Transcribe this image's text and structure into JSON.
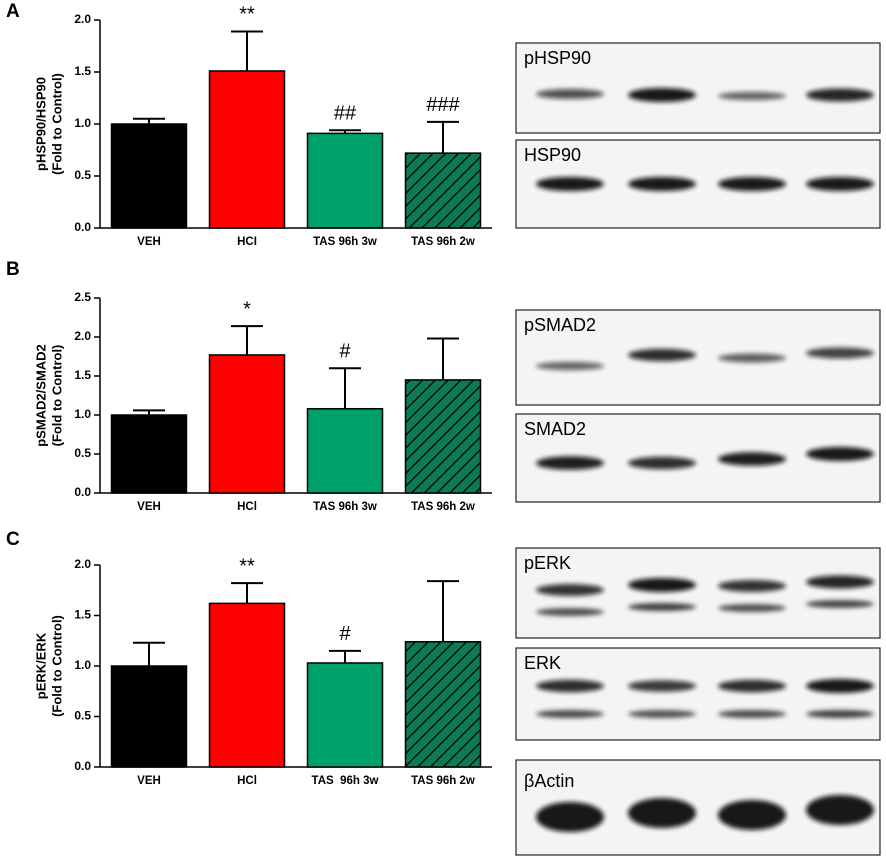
{
  "chart_data": [
    {
      "type": "bar",
      "panel": "A",
      "y_label": [
        "pHSP90/HSP90",
        "(Fold to Control)"
      ],
      "categories": [
        "VEH",
        "HCI",
        "TAS 96h 3w",
        "TAS 96h 2w"
      ],
      "values": [
        1.0,
        1.51,
        0.91,
        0.72
      ],
      "errors": [
        0.05,
        0.38,
        0.03,
        0.3
      ],
      "annotations": [
        null,
        "**",
        "##",
        "###"
      ],
      "colors": [
        "#000000",
        "#ff0000",
        "#00a06a",
        "#0b7a55"
      ],
      "hatch": [
        false,
        false,
        false,
        true
      ],
      "ylim": [
        0,
        2
      ],
      "yticks": [
        {
          "value": 0,
          "label": "0.0"
        },
        0.5,
        {
          "value": 1,
          "label": "1.0"
        },
        1.5,
        {
          "value": 2,
          "label": "2.0"
        }
      ],
      "blot_labels": [
        "pHSP90",
        "HSP90"
      ]
    },
    {
      "type": "bar",
      "panel": "B",
      "y_label": [
        "pSMAD2/SMAD2",
        "(Fold to Control)"
      ],
      "categories": [
        "VEH",
        "HCl",
        "TAS 96h 3w",
        "TAS 96h 2w"
      ],
      "values": [
        1.0,
        1.77,
        1.08,
        1.45
      ],
      "errors": [
        0.06,
        0.37,
        0.52,
        0.53
      ],
      "annotations": [
        null,
        "*",
        "#",
        null
      ],
      "colors": [
        "#000000",
        "#ff0000",
        "#00a06a",
        "#0b7a55"
      ],
      "hatch": [
        false,
        false,
        false,
        true
      ],
      "ylim": [
        0,
        2.5
      ],
      "yticks": [
        {
          "value": 0,
          "label": "0.0"
        },
        0.5,
        {
          "value": 1,
          "label": "1.0"
        },
        1.5,
        {
          "value": 2,
          "label": "2.0"
        },
        2.5
      ],
      "blot_labels": [
        "pSMAD2",
        "SMAD2"
      ]
    },
    {
      "type": "bar",
      "panel": "C",
      "y_label": [
        "pERK/ERK",
        "(Fold to Control)"
      ],
      "categories": [
        "VEH",
        "HCl",
        "TAS  96h 3w",
        "TAS 96h 2w"
      ],
      "values": [
        1.0,
        1.62,
        1.03,
        1.24
      ],
      "errors": [
        0.23,
        0.2,
        0.12,
        0.6
      ],
      "annotations": [
        null,
        "**",
        "#",
        null
      ],
      "colors": [
        "#000000",
        "#ff0000",
        "#00a06a",
        "#0b7a55"
      ],
      "hatch": [
        false,
        false,
        false,
        true
      ],
      "ylim": [
        0,
        2
      ],
      "yticks": [
        {
          "value": 0,
          "label": "0.0"
        },
        0.5,
        {
          "value": 1,
          "label": "1.0"
        },
        1.5,
        {
          "value": 2,
          "label": "2.0"
        }
      ],
      "blot_labels": [
        "pERK",
        "ERK",
        "βActin"
      ]
    }
  ]
}
